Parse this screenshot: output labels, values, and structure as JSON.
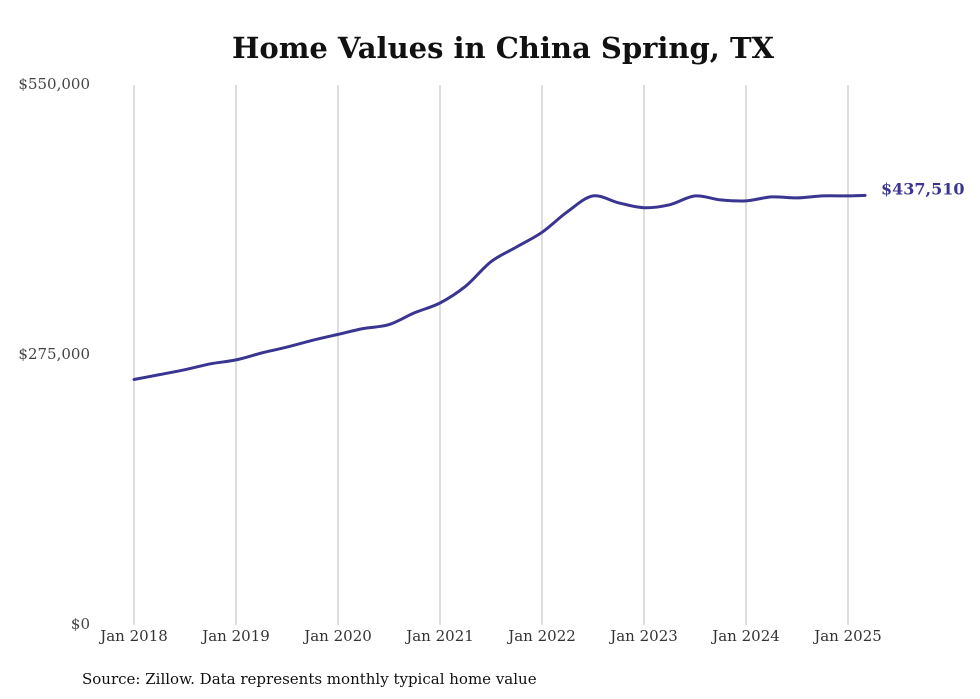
{
  "chart_data": {
    "type": "line",
    "title": "Home Values in China Spring, TX",
    "source": "Source: Zillow. Data represents monthly typical home value",
    "ylim": [
      0,
      550000
    ],
    "y_ticks": [
      {
        "value": 0,
        "label": "$0"
      },
      {
        "value": 275000,
        "label": "$275,000"
      },
      {
        "value": 550000,
        "label": "$550,000"
      }
    ],
    "x_ticks": [
      {
        "value": "2018-01",
        "label": "Jan 2018"
      },
      {
        "value": "2019-01",
        "label": "Jan 2019"
      },
      {
        "value": "2020-01",
        "label": "Jan 2020"
      },
      {
        "value": "2021-01",
        "label": "Jan 2021"
      },
      {
        "value": "2022-01",
        "label": "Jan 2022"
      },
      {
        "value": "2023-01",
        "label": "Jan 2023"
      },
      {
        "value": "2024-01",
        "label": "Jan 2024"
      },
      {
        "value": "2025-01",
        "label": "Jan 2025"
      }
    ],
    "xlim": [
      "2018-01",
      "2025-04"
    ],
    "grid": "vertical",
    "line_color": "#3a3590",
    "end_label": "$437,510",
    "series": [
      {
        "x": [
          "2018-01",
          "2018-04",
          "2018-07",
          "2018-10",
          "2019-01",
          "2019-04",
          "2019-07",
          "2019-10",
          "2020-01",
          "2020-04",
          "2020-07",
          "2020-10",
          "2021-01",
          "2021-04",
          "2021-07",
          "2021-10",
          "2022-01",
          "2022-04",
          "2022-07",
          "2022-10",
          "2023-01",
          "2023-04",
          "2023-07",
          "2023-10",
          "2024-01",
          "2024-04",
          "2024-07",
          "2024-10",
          "2025-01",
          "2025-03"
        ],
        "values": [
          250000,
          255000,
          260000,
          266000,
          270000,
          277000,
          283000,
          290000,
          296000,
          302000,
          306000,
          318000,
          328000,
          345000,
          370000,
          385000,
          400000,
          421000,
          437000,
          430000,
          425000,
          428000,
          437000,
          433000,
          432000,
          436000,
          435000,
          437000,
          437000,
          437510
        ]
      }
    ]
  }
}
